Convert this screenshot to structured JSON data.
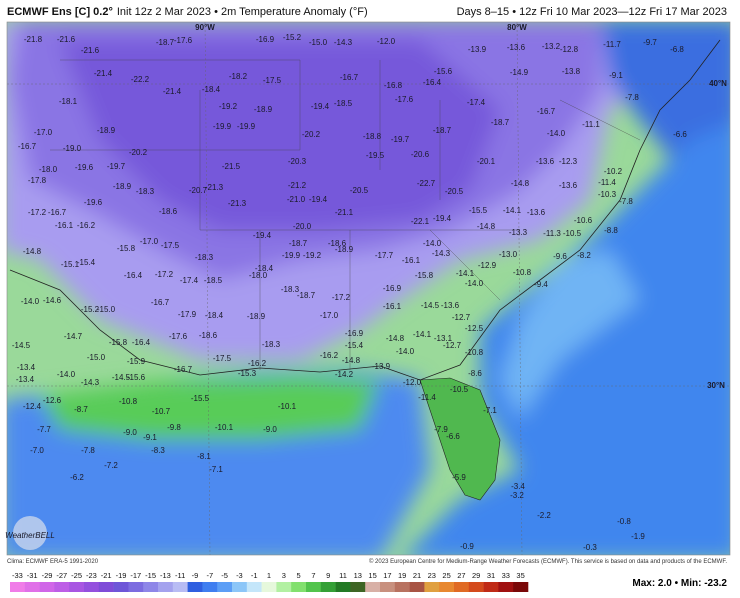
{
  "header": {
    "left_bold": "ECMWF Ens [C] 0.2°",
    "left": "Init 12z 2 Mar 2023 • 2m Temperature Anomaly (°F)",
    "right": "Days 8–15 • 12z Fri 10 Mar 2023—12z Fri 17 Mar 2023"
  },
  "map": {
    "graticule": [
      "90°W",
      "80°W",
      "40°N",
      "30°N"
    ],
    "labels": [
      "-21.8",
      "-21.6",
      "-18.7",
      "-17.6",
      "-16.9",
      "-15.2",
      "-15.0",
      "-14.3",
      "-12.0",
      "-13.9",
      "-13.6",
      "-13.2",
      "-12.8",
      "-11.7",
      "-9.7",
      "-6.8",
      "-21.6",
      "-21.4",
      "-22.2",
      "-21.4",
      "-18.4",
      "-18.2",
      "-17.5",
      "-16.7",
      "-16.8",
      "-16.4",
      "-15.6",
      "-14.9",
      "-13.8",
      "-9.1",
      "-18.1",
      "-18.9",
      "-19.2",
      "-18.9",
      "-19.4",
      "-18.5",
      "-17.6",
      "-17.4",
      "-16.7",
      "-7.8",
      "-17.0",
      "-16.7",
      "-19.0",
      "-20.2",
      "-19.9",
      "-19.9",
      "-20.2",
      "-18.8",
      "-19.7",
      "-18.7",
      "-18.7",
      "-14.0",
      "-11.1",
      "-6.6",
      "-18.0",
      "-19.6",
      "-19.7",
      "-21.5",
      "-20.3",
      "-19.5",
      "-20.6",
      "-20.1",
      "-13.6",
      "-12.3",
      "-10.2",
      "-17.8",
      "-18.9",
      "-18.3",
      "-20.7",
      "-21.3",
      "-21.2",
      "-21.0",
      "-19.4",
      "-20.5",
      "-22.7",
      "-20.5",
      "-14.8",
      "-13.6",
      "-11.4",
      "-10.3",
      "-7.8",
      "-17.2",
      "-16.7",
      "-19.6",
      "-18.6",
      "-21.3",
      "-21.1",
      "-15.5",
      "-14.1",
      "-13.6",
      "-10.6",
      "-8.8",
      "-16.1",
      "-16.2",
      "-20.0",
      "-22.1",
      "-19.4",
      "-14.8",
      "-13.3",
      "-11.3",
      "-10.5",
      "-14.8",
      "-15.8",
      "-17.0",
      "-17.5",
      "-19.4",
      "-18.7",
      "-18.6",
      "-14.0",
      "-14.3",
      "-13.0",
      "-9.6",
      "-8.2",
      "-15.1",
      "-15.4",
      "-16.4",
      "-17.2",
      "-18.3",
      "-18.4",
      "-19.9",
      "-19.2",
      "-18.9",
      "-17.7",
      "-16.1",
      "-12.9",
      "-10.8",
      "-14.0",
      "-14.6",
      "-15.2",
      "-15.0",
      "-17.4",
      "-18.5",
      "-18.0",
      "-15.8",
      "-14.1",
      "-14.0",
      "-9.4",
      "-16.7",
      "-18.3",
      "-18.7",
      "-17.2",
      "-16.9",
      "-16.1",
      "-14.5",
      "-13.6",
      "-14.7",
      "-15.8",
      "-16.4",
      "-17.9",
      "-18.4",
      "-18.9",
      "-17.0",
      "-16.9",
      "-12.7",
      "-12.5",
      "-14.5",
      "-17.6",
      "-18.6",
      "-18.3",
      "-16.2",
      "-15.4",
      "-14.1",
      "-13.1",
      "-12.7",
      "-13.4",
      "-15.0",
      "-15.9",
      "-17.5",
      "-16.2",
      "-14.8",
      "-14.8",
      "-14.0",
      "-10.8",
      "-13.4",
      "-14.0",
      "-14.3",
      "-14.5",
      "-15.6",
      "-16.7",
      "-13.9",
      "-14.2",
      "-15.3",
      "-12.0",
      "-10.5",
      "-8.6",
      "-12.4",
      "-12.6",
      "-8.7",
      "-10.8",
      "-15.5",
      "-11.4",
      "-10.1",
      "-7.1",
      "-10.7",
      "-9.8",
      "-10.1",
      "-9.0",
      "-7.7",
      "-9.0",
      "-9.1",
      "-7.9",
      "-6.6",
      "-7.0",
      "-7.8",
      "-8.3",
      "-8.1",
      "-7.2",
      "-7.1",
      "-6.2",
      "-5.9",
      "-3.4",
      "-3.2",
      "-2.2",
      "-0.9",
      "-0.3",
      "-0.8",
      "-1.9"
    ],
    "logo": "WeatherBELL"
  },
  "footer": {
    "clima": "Clima: ECMWF ERA-5 1991-2020",
    "copyright": "© 2023 European Centre for Medium-Range Weather Forecasts (ECMWF). This service is based on data and products of the ECMWF.",
    "maxmin": "Max: 2.0 • Min: -23.2"
  },
  "colorbar": {
    "ticks": [
      "-33",
      "-31",
      "-29",
      "-27",
      "-25",
      "-23",
      "-21",
      "-19",
      "-17",
      "-15",
      "-13",
      "-11",
      "-9",
      "-7",
      "-5",
      "-3",
      "-1",
      "1",
      "3",
      "5",
      "7",
      "9",
      "11",
      "13",
      "15",
      "17",
      "19",
      "21",
      "23",
      "25",
      "27",
      "29",
      "31",
      "33",
      "35"
    ],
    "colors": [
      "#f07ce8",
      "#e070e8",
      "#d066e8",
      "#bd5ee6",
      "#a856e2",
      "#9450de",
      "#7f4cd8",
      "#6e56d8",
      "#7c6ce0",
      "#8e86e8",
      "#a4a2ee",
      "#b8bcf4",
      "#2f5fe0",
      "#3f7ef0",
      "#5c9ef6",
      "#8cc6f8",
      "#c4e6fa",
      "#e6f8dc",
      "#b2f0a2",
      "#82e06e",
      "#52c44c",
      "#34a036",
      "#237a25",
      "#3e6524",
      "#d8b0a6",
      "#c8907e",
      "#b87260",
      "#a85444",
      "#e0a040",
      "#e88830",
      "#e06a24",
      "#d44a1c",
      "#c02a16",
      "#a01010",
      "#7a0808"
    ]
  }
}
